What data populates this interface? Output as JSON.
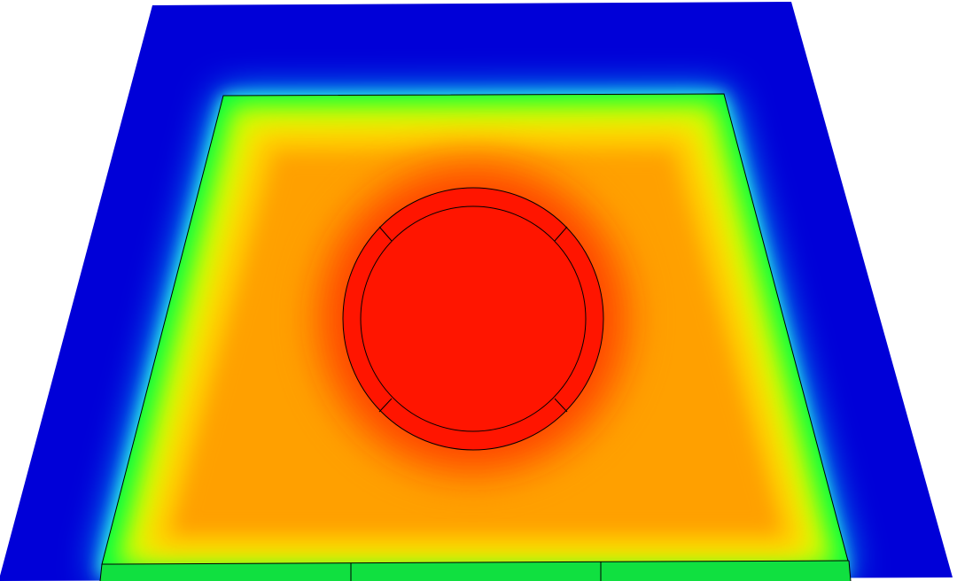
{
  "view": {
    "type": "simulation-contour-plot",
    "background": "#ffffff",
    "colormap": [
      "#0000ff",
      "#00ffff",
      "#00ff00",
      "#ffff00",
      "#ffa500",
      "#ff0000"
    ],
    "colors": {
      "outer_plate_edge": "#0000d8",
      "substrate_top": "#ff9f00",
      "heat_source": "#ff1500",
      "outline": "#000000"
    },
    "regions": [
      {
        "name": "outer-plate",
        "field_level": "low",
        "color": "#0000d8"
      },
      {
        "name": "substrate",
        "field_level": "medium-high",
        "color": "#ff9f00"
      },
      {
        "name": "heat-ring",
        "field_level": "max",
        "color": "#ff1500"
      },
      {
        "name": "heat-core",
        "field_level": "max",
        "color": "#ff1500"
      }
    ],
    "ring_segments": 4,
    "front_edge_segments": 3
  }
}
